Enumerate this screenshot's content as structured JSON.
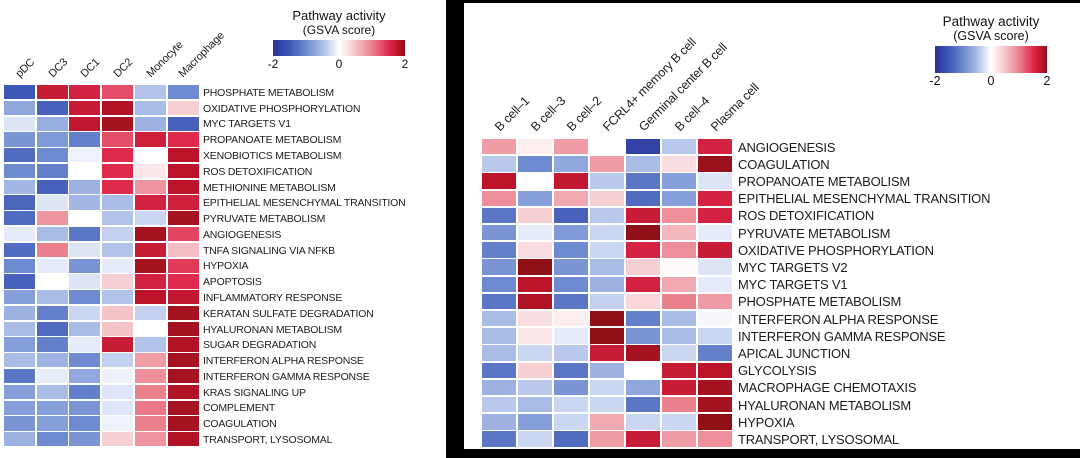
{
  "color_scale": {
    "domain": [
      -2,
      2
    ],
    "stops": [
      [
        -2.0,
        "#2a3399"
      ],
      [
        -1.5,
        "#3e57b5"
      ],
      [
        -1.0,
        "#6e8ad0"
      ],
      [
        -0.5,
        "#a9bce6"
      ],
      [
        0.0,
        "#ffffff"
      ],
      [
        0.5,
        "#f5c4c9"
      ],
      [
        1.0,
        "#ec818e"
      ],
      [
        1.5,
        "#df2a4d"
      ],
      [
        1.8,
        "#bc132a"
      ],
      [
        2.0,
        "#8e1016"
      ]
    ]
  },
  "chart_data": [
    {
      "type": "heatmap",
      "title": "",
      "legend": {
        "title": "Pathway activity",
        "subtitle": "(GSVA score)",
        "ticks": [
          "-2",
          "0",
          "2"
        ],
        "range": [
          -2,
          2
        ],
        "position": "top-right"
      },
      "columns": [
        "pDC",
        "DC3",
        "DC1",
        "DC2",
        "Monocyte",
        "Macrophage"
      ],
      "rows": [
        "PHOSPHATE METABOLISM",
        "OXIDATIVE PHOSPHORYLATION",
        "MYC TARGETS V1",
        "PROPANOATE METABOLISM",
        "XENOBIOTICS METABOLISM",
        "ROS DETOXIFICATION",
        "METHIONINE METABOLISM",
        "EPITHELIAL MESENCHYMAL TRANSITION",
        "PYRUVATE METABOLISM",
        "ANGIOGENESIS",
        "TNFA SIGNALING VIA NFKB",
        "HYPOXIA",
        "APOPTOSIS",
        "INFLAMMATORY RESPONSE",
        "KERATAN SULFATE DEGRADATION",
        "HYALURONAN METABOLISM",
        "SUGAR DEGRADATION",
        "INTERFERON ALPHA RESPONSE",
        "INTERFERON GAMMA RESPONSE",
        "KRAS SIGNALING UP",
        "COMPLEMENT",
        "COAGULATION",
        "TRANSPORT, LYSOSOMAL"
      ],
      "values": [
        [
          -1.5,
          1.7,
          1.6,
          1.3,
          -0.45,
          -1.0
        ],
        [
          -0.7,
          -1.4,
          1.7,
          1.85,
          -0.5,
          0.4
        ],
        [
          -0.2,
          -0.65,
          1.75,
          1.9,
          -0.6,
          -1.4
        ],
        [
          -0.9,
          -0.85,
          -1.1,
          1.3,
          1.65,
          1.5
        ],
        [
          -1.3,
          -1.0,
          -0.1,
          1.5,
          0.0,
          1.8
        ],
        [
          -1.0,
          -1.1,
          0.0,
          1.5,
          0.2,
          1.8
        ],
        [
          -0.55,
          -1.4,
          -0.6,
          1.5,
          0.85,
          1.8
        ],
        [
          -1.35,
          -0.2,
          -0.55,
          -0.5,
          1.6,
          1.65
        ],
        [
          -1.3,
          0.85,
          0.0,
          -0.45,
          -0.3,
          1.9
        ],
        [
          -0.15,
          -0.5,
          -1.2,
          -0.35,
          1.9,
          1.35
        ],
        [
          -1.3,
          1.0,
          -0.2,
          -0.45,
          1.7,
          0.55
        ],
        [
          -1.0,
          -0.15,
          -0.9,
          -0.15,
          1.9,
          1.4
        ],
        [
          -1.4,
          0.0,
          -0.2,
          0.4,
          1.6,
          1.5
        ],
        [
          -0.8,
          -0.5,
          -1.0,
          -0.45,
          1.8,
          1.75
        ],
        [
          -0.6,
          -1.1,
          -0.3,
          0.5,
          -0.35,
          1.9
        ],
        [
          -0.5,
          -1.3,
          -0.5,
          0.5,
          0.0,
          1.9
        ],
        [
          -0.8,
          -1.1,
          -0.15,
          1.7,
          -0.45,
          1.85
        ],
        [
          -0.5,
          -0.6,
          -1.0,
          -0.35,
          0.8,
          1.9
        ],
        [
          -1.2,
          -0.15,
          -0.7,
          -0.1,
          0.9,
          1.9
        ],
        [
          -0.8,
          -0.5,
          -1.1,
          -0.2,
          1.0,
          1.85
        ],
        [
          -0.8,
          -0.8,
          -0.9,
          -0.2,
          1.05,
          1.9
        ],
        [
          -0.9,
          -0.8,
          -1.0,
          -0.1,
          1.0,
          1.9
        ],
        [
          -0.6,
          -1.0,
          -0.9,
          0.4,
          0.85,
          1.85
        ]
      ]
    },
    {
      "type": "heatmap",
      "title": "",
      "legend": {
        "title": "Pathway activity",
        "subtitle": "(GSVA score)",
        "ticks": [
          "-2",
          "0",
          "2"
        ],
        "range": [
          -2,
          2
        ],
        "position": "top-right"
      },
      "columns": [
        "B cell–1",
        "B cell–3",
        "B cell–2",
        "FCRL4+ memory B cell",
        "Germinal center B cell",
        "B cell–4",
        "Plasma cell"
      ],
      "rows": [
        "ANGIOGENESIS",
        "COAGULATION",
        "PROPANOATE METABOLISM",
        "EPITHELIAL MESENCHYMAL TRANSITION",
        "ROS DETOXIFICATION",
        "PYRUVATE METABOLISM",
        "OXIDATIVE PHOSPHORYLATION",
        "MYC TARGETS V2",
        "MYC TARGETS V1",
        "PHOSPHATE METABOLISM",
        "INTERFERON ALPHA RESPONSE",
        "INTERFERON GAMMA RESPONSE",
        "APICAL JUNCTION",
        "GLYCOLYSIS",
        "MACROPHAGE CHEMOTAXIS",
        "HYALURONAN METABOLISM",
        "HYPOXIA",
        "TRANSPORT, LYSOSOMAL"
      ],
      "values": [
        [
          0.8,
          0.15,
          0.8,
          0.0,
          -1.8,
          -0.4,
          1.6
        ],
        [
          -0.4,
          -1.0,
          -0.7,
          0.8,
          -0.5,
          0.3,
          1.95
        ],
        [
          1.8,
          0.0,
          1.75,
          -0.4,
          -1.2,
          -0.8,
          -0.2
        ],
        [
          0.9,
          -0.8,
          0.7,
          0.4,
          -1.3,
          -0.8,
          1.6
        ],
        [
          -1.2,
          0.4,
          -1.4,
          -0.4,
          1.7,
          0.9,
          1.6
        ],
        [
          -0.9,
          -0.15,
          -0.85,
          -0.3,
          2.0,
          0.6,
          -0.15
        ],
        [
          -1.1,
          0.3,
          -1.0,
          -0.3,
          1.6,
          0.9,
          1.7
        ],
        [
          -0.9,
          2.0,
          -0.9,
          -0.5,
          0.4,
          0.05,
          -0.2
        ],
        [
          -1.0,
          1.8,
          -1.0,
          -0.6,
          1.6,
          0.7,
          -0.15
        ],
        [
          -1.2,
          1.85,
          -1.2,
          -0.35,
          0.35,
          1.0,
          0.8
        ],
        [
          -0.5,
          0.3,
          0.15,
          2.0,
          -1.1,
          -0.5,
          -0.05
        ],
        [
          -0.5,
          0.2,
          -0.15,
          2.0,
          -0.9,
          -0.5,
          -0.3
        ],
        [
          -0.5,
          -0.3,
          -0.4,
          1.7,
          1.9,
          -0.3,
          -1.1
        ],
        [
          -1.2,
          0.4,
          -1.2,
          -0.6,
          0.0,
          1.7,
          1.8
        ],
        [
          -0.6,
          -0.4,
          -0.9,
          -0.3,
          -0.7,
          1.7,
          1.9
        ],
        [
          -0.4,
          -0.5,
          -0.3,
          -0.3,
          -1.2,
          1.0,
          1.9
        ],
        [
          -0.6,
          -0.8,
          -0.3,
          0.7,
          -0.3,
          -0.3,
          2.0
        ],
        [
          -1.2,
          -0.3,
          -1.3,
          0.8,
          1.7,
          0.8,
          0.9
        ]
      ]
    }
  ]
}
